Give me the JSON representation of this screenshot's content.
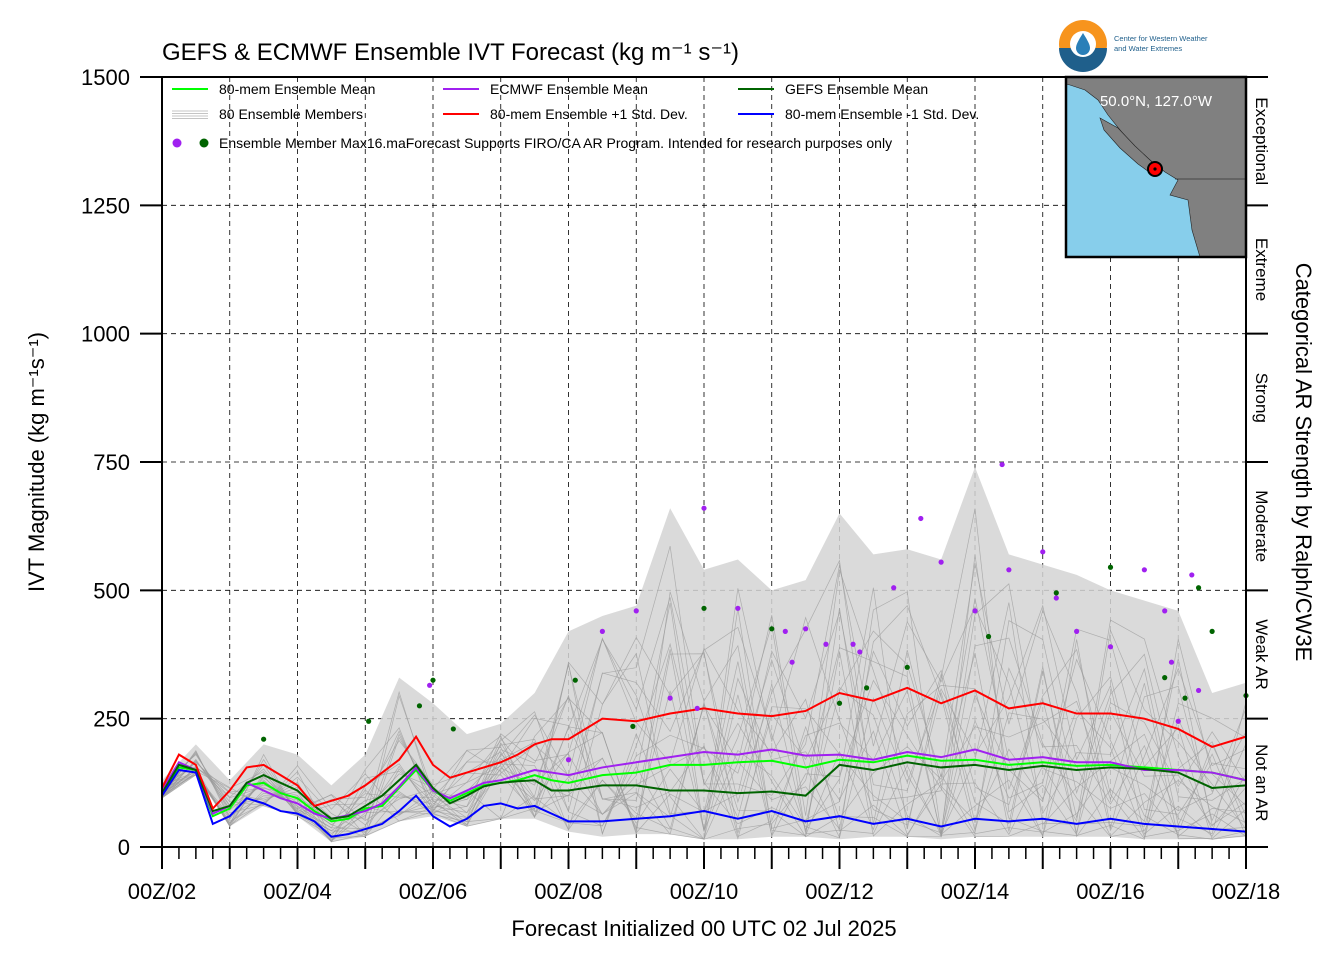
{
  "chart_data": {
    "type": "line",
    "title": "GEFS & ECMWF Ensemble IVT Forecast (kg m⁻¹ s⁻¹)",
    "xlabel": "Forecast Initialized 00 UTC 02 Jul 2025",
    "ylabel": "IVT Magnitude (kg m⁻¹s⁻¹)",
    "right_label": "Categorical AR Strength by Ralph/CW3E",
    "xlim": [
      0,
      16
    ],
    "ylim": [
      0,
      1500
    ],
    "x_unit": "days after 00Z/02",
    "x_tick_labels": [
      "00Z/02",
      "00Z/04",
      "00Z/06",
      "00Z/08",
      "00Z/10",
      "00Z/12",
      "00Z/14",
      "00Z/16",
      "00Z/18"
    ],
    "x_tick_positions": [
      0,
      2,
      4,
      6,
      8,
      10,
      12,
      14,
      16
    ],
    "y_ticks": [
      0,
      250,
      500,
      750,
      1000,
      1250,
      1500
    ],
    "grid": true,
    "categories_right": [
      {
        "name": "Not an AR",
        "range": [
          0,
          250
        ]
      },
      {
        "name": "Weak AR",
        "range": [
          250,
          500
        ]
      },
      {
        "name": "Moderate",
        "range": [
          500,
          750
        ]
      },
      {
        "name": "Strong",
        "range": [
          750,
          1000
        ]
      },
      {
        "name": "Extreme",
        "range": [
          1000,
          1250
        ]
      },
      {
        "name": "Exceptional",
        "range": [
          1250,
          1500
        ]
      }
    ],
    "legend": {
      "placement": "top-left",
      "items": [
        {
          "label": "80-mem Ensemble Mean",
          "color": "#00ff00"
        },
        {
          "label": "ECMWF Ensemble Mean",
          "color": "#a020f0"
        },
        {
          "label": "GEFS Ensemble Mean",
          "color": "#006400"
        },
        {
          "label": "80 Ensemble Members",
          "color": "#aaaaaa"
        },
        {
          "label": "80-mem Ensemble +1 Std. Dev.",
          "color": "#ff0000"
        },
        {
          "label": "80-mem Ensemble -1 Std. Dev.",
          "color": "#0000ff"
        },
        {
          "label": "Ensemble Member Max16.maForecast Supports FIRO/CA AR Program. Intended for research purposes only",
          "color": ""
        }
      ]
    },
    "series": [
      {
        "name": "80-mem Ensemble Mean",
        "color": "#00ff00",
        "x": [
          0,
          0.25,
          0.5,
          0.75,
          1,
          1.25,
          1.5,
          1.75,
          2,
          2.25,
          2.5,
          2.75,
          3,
          3.25,
          3.5,
          3.75,
          4,
          4.25,
          4.5,
          4.75,
          5,
          5.25,
          5.5,
          5.75,
          6,
          6.5,
          7,
          7.5,
          8,
          8.5,
          9,
          9.5,
          10,
          10.5,
          11,
          11.5,
          12,
          12.5,
          13,
          13.5,
          14,
          14.5,
          15,
          15.5,
          16
        ],
        "values": [
          105,
          155,
          150,
          60,
          75,
          120,
          125,
          105,
          95,
          70,
          50,
          55,
          75,
          80,
          115,
          150,
          110,
          90,
          105,
          120,
          125,
          130,
          140,
          130,
          125,
          140,
          145,
          160,
          160,
          165,
          168,
          155,
          170,
          165,
          178,
          168,
          170,
          160,
          165,
          158,
          160,
          155,
          150,
          145,
          130
        ]
      },
      {
        "name": "ECMWF Ensemble Mean",
        "color": "#a020f0",
        "x": [
          0,
          0.25,
          0.5,
          0.75,
          1,
          1.25,
          1.5,
          1.75,
          2,
          2.25,
          2.5,
          2.75,
          3,
          3.25,
          3.5,
          3.75,
          4,
          4.25,
          4.5,
          4.75,
          5,
          5.25,
          5.5,
          5.75,
          6,
          6.5,
          7,
          7.5,
          8,
          8.5,
          9,
          9.5,
          10,
          10.5,
          11,
          11.5,
          12,
          12.5,
          13,
          13.5,
          14,
          14.5,
          15,
          15.5,
          16
        ],
        "values": [
          110,
          165,
          150,
          65,
          80,
          125,
          110,
          95,
          85,
          65,
          55,
          62,
          70,
          85,
          118,
          155,
          110,
          95,
          110,
          125,
          130,
          140,
          150,
          145,
          140,
          155,
          165,
          175,
          185,
          180,
          190,
          178,
          180,
          170,
          185,
          175,
          190,
          170,
          175,
          165,
          165,
          150,
          150,
          145,
          130
        ]
      },
      {
        "name": "GEFS Ensemble Mean",
        "color": "#006400",
        "x": [
          0,
          0.25,
          0.5,
          0.75,
          1,
          1.25,
          1.5,
          1.75,
          2,
          2.25,
          2.5,
          2.75,
          3,
          3.25,
          3.5,
          3.75,
          4,
          4.25,
          4.5,
          4.75,
          5,
          5.25,
          5.5,
          5.75,
          6,
          6.5,
          7,
          7.5,
          8,
          8.5,
          9,
          9.5,
          10,
          10.5,
          11,
          11.5,
          12,
          12.5,
          13,
          13.5,
          14,
          14.5,
          15,
          15.5,
          16
        ],
        "values": [
          105,
          160,
          150,
          70,
          80,
          125,
          140,
          125,
          110,
          80,
          55,
          60,
          80,
          100,
          130,
          160,
          115,
          85,
          100,
          118,
          125,
          128,
          130,
          110,
          110,
          120,
          120,
          110,
          110,
          105,
          108,
          100,
          160,
          150,
          165,
          155,
          160,
          150,
          158,
          150,
          155,
          152,
          145,
          115,
          120
        ]
      },
      {
        "name": "80-mem Ensemble +1 Std. Dev.",
        "color": "#ff0000",
        "x": [
          0,
          0.25,
          0.5,
          0.75,
          1,
          1.25,
          1.5,
          1.75,
          2,
          2.25,
          2.5,
          2.75,
          3,
          3.25,
          3.5,
          3.75,
          4,
          4.25,
          4.5,
          4.75,
          5,
          5.25,
          5.5,
          5.75,
          6,
          6.5,
          7,
          7.5,
          8,
          8.5,
          9,
          9.5,
          10,
          10.5,
          11,
          11.5,
          12,
          12.5,
          13,
          13.5,
          14,
          14.5,
          15,
          15.5,
          16
        ],
        "values": [
          115,
          180,
          160,
          75,
          110,
          155,
          160,
          140,
          120,
          80,
          90,
          100,
          120,
          145,
          170,
          215,
          160,
          135,
          145,
          155,
          165,
          180,
          200,
          210,
          210,
          250,
          245,
          260,
          270,
          260,
          255,
          265,
          300,
          285,
          310,
          280,
          305,
          270,
          280,
          260,
          260,
          250,
          230,
          195,
          215
        ]
      },
      {
        "name": "80-mem Ensemble -1 Std. Dev.",
        "color": "#0000ff",
        "x": [
          0,
          0.25,
          0.5,
          0.75,
          1,
          1.25,
          1.5,
          1.75,
          2,
          2.25,
          2.5,
          2.75,
          3,
          3.25,
          3.5,
          3.75,
          4,
          4.25,
          4.5,
          4.75,
          5,
          5.25,
          5.5,
          5.75,
          6,
          6.5,
          7,
          7.5,
          8,
          8.5,
          9,
          9.5,
          10,
          10.5,
          11,
          11.5,
          12,
          12.5,
          13,
          13.5,
          14,
          14.5,
          15,
          15.5,
          16
        ],
        "values": [
          100,
          150,
          145,
          45,
          60,
          95,
          85,
          70,
          65,
          50,
          20,
          25,
          35,
          45,
          70,
          100,
          60,
          40,
          55,
          80,
          85,
          75,
          80,
          65,
          50,
          50,
          55,
          60,
          70,
          55,
          70,
          50,
          60,
          45,
          55,
          40,
          55,
          50,
          55,
          45,
          55,
          45,
          40,
          35,
          30
        ]
      }
    ],
    "member_band": {
      "name": "80 Ensemble Members",
      "color": "#cccccc",
      "x": [
        0,
        0.5,
        1,
        1.5,
        2,
        2.5,
        3,
        3.5,
        4,
        4.5,
        5,
        5.5,
        6,
        6.5,
        7,
        7.5,
        8,
        8.5,
        9,
        9.5,
        10,
        10.5,
        11,
        11.5,
        12,
        12.5,
        13,
        13.5,
        14,
        14.5,
        15,
        15.5,
        16
      ],
      "low": [
        95,
        140,
        40,
        80,
        60,
        10,
        20,
        50,
        60,
        40,
        55,
        55,
        30,
        20,
        25,
        25,
        15,
        15,
        20,
        20,
        15,
        20,
        20,
        15,
        20,
        20,
        20,
        20,
        20,
        15,
        15,
        15,
        20
      ],
      "high": [
        130,
        200,
        130,
        200,
        180,
        120,
        180,
        330,
        280,
        220,
        240,
        300,
        420,
        450,
        470,
        660,
        540,
        560,
        500,
        520,
        650,
        570,
        580,
        560,
        740,
        570,
        550,
        530,
        500,
        480,
        460,
        300,
        320
      ]
    },
    "max_points": [
      {
        "series": "ECMWF",
        "color": "#a020f0",
        "x": [
          3.95,
          6.0,
          6.5,
          7.0,
          7.5,
          7.9,
          8.0,
          8.5,
          9.2,
          9.3,
          9.5,
          9.8,
          10.2,
          10.3,
          10.8,
          11.2,
          11.5,
          12.0,
          12.4,
          12.5,
          13.0,
          13.2,
          13.5,
          14.0,
          14.5,
          14.8,
          14.9,
          15.0,
          15.2,
          15.3
        ],
        "values": [
          315,
          170,
          420,
          460,
          290,
          270,
          660,
          465,
          420,
          360,
          425,
          395,
          395,
          380,
          505,
          640,
          555,
          460,
          745,
          540,
          575,
          485,
          420,
          390,
          540,
          460,
          360,
          245,
          530,
          305
        ]
      },
      {
        "series": "GEFS",
        "color": "#006400",
        "x": [
          1.5,
          3.05,
          3.8,
          4.0,
          4.3,
          6.1,
          6.95,
          8.0,
          9.0,
          10.0,
          10.4,
          11.0,
          12.2,
          13.2,
          14.0,
          14.8,
          15.1,
          15.3,
          15.5,
          16.0
        ],
        "values": [
          210,
          245,
          275,
          325,
          230,
          325,
          235,
          465,
          425,
          280,
          310,
          350,
          410,
          495,
          545,
          330,
          290,
          505,
          420,
          295
        ]
      }
    ]
  },
  "inset": {
    "label": "50.0°N, 127.0°W",
    "ocean_color": "#87ceeb",
    "land_color": "#808080",
    "marker_color": "#ff0000"
  },
  "logo": {
    "line1": "Center for Western Weather",
    "line2": "and Water Extremes"
  }
}
